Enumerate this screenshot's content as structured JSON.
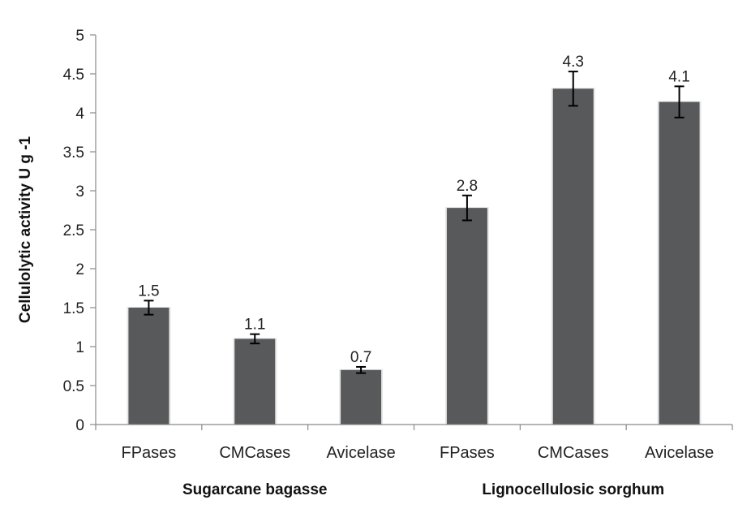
{
  "chart_data": {
    "type": "bar",
    "ylabel": "Cellulolytic activity U g -1",
    "ylim": [
      0,
      5
    ],
    "yticks": [
      "0",
      "0.5",
      "1",
      "1.5",
      "2",
      "2.5",
      "3",
      "3.5",
      "4",
      "4.5",
      "5"
    ],
    "grid": false,
    "legend": "none",
    "bar_color": "#58595b",
    "categories": [
      "FPases",
      "CMCases",
      "Avicelase",
      "FPases",
      "CMCases",
      "Avicelase"
    ],
    "groups": [
      {
        "label": "Sugarcane bagasse",
        "span": [
          0,
          2
        ]
      },
      {
        "label": "Lignocellulosic sorghum",
        "span": [
          3,
          5
        ]
      }
    ],
    "values": [
      1.5,
      1.1,
      0.7,
      2.78,
      4.31,
      4.14
    ],
    "errors": [
      0.09,
      0.06,
      0.04,
      0.16,
      0.22,
      0.2
    ],
    "data_labels": [
      "1.5",
      "1.1",
      "0.7",
      "2.8",
      "4.3",
      "4.1"
    ]
  }
}
